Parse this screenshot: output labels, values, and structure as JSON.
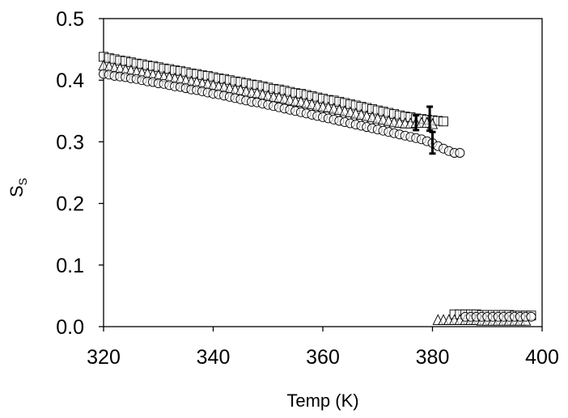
{
  "chart_data": {
    "type": "scatter",
    "title": "",
    "xlabel": "Temp (K)",
    "ylabel_main": "S",
    "ylabel_sub": "S",
    "xlim": [
      320,
      400
    ],
    "ylim": [
      0,
      0.5
    ],
    "xticks": [
      320,
      340,
      360,
      380,
      400
    ],
    "yticks": [
      0.0,
      0.1,
      0.2,
      0.3,
      0.4,
      0.5
    ],
    "xtick_labels": [
      "320",
      "340",
      "360",
      "380",
      "400"
    ],
    "ytick_labels": [
      "0.0",
      "0.1",
      "0.2",
      "0.3",
      "0.4",
      "0.5"
    ],
    "grid": false,
    "legend": "none",
    "series": [
      {
        "name": "squares",
        "marker": "square",
        "x": [
          320,
          321,
          322,
          323,
          324,
          325,
          326,
          327,
          328,
          329,
          330,
          331,
          332,
          333,
          334,
          335,
          336,
          337,
          338,
          339,
          340,
          341,
          342,
          343,
          344,
          345,
          346,
          347,
          348,
          349,
          350,
          351,
          352,
          353,
          354,
          355,
          356,
          357,
          358,
          359,
          360,
          361,
          362,
          363,
          364,
          365,
          366,
          367,
          368,
          369,
          370,
          371,
          372,
          373,
          374,
          375,
          376,
          377,
          378,
          379,
          380,
          381,
          382,
          384,
          385,
          386,
          387,
          388,
          389,
          390,
          391,
          392,
          393,
          394,
          395,
          396,
          397,
          398
        ],
        "y": [
          0.438,
          0.436,
          0.434,
          0.432,
          0.431,
          0.429,
          0.427,
          0.426,
          0.424,
          0.423,
          0.421,
          0.419,
          0.418,
          0.416,
          0.415,
          0.413,
          0.411,
          0.41,
          0.408,
          0.407,
          0.405,
          0.403,
          0.402,
          0.4,
          0.398,
          0.397,
          0.395,
          0.393,
          0.392,
          0.39,
          0.388,
          0.386,
          0.385,
          0.383,
          0.381,
          0.379,
          0.378,
          0.376,
          0.374,
          0.372,
          0.37,
          0.368,
          0.367,
          0.365,
          0.363,
          0.361,
          0.359,
          0.357,
          0.355,
          0.353,
          0.351,
          0.349,
          0.347,
          0.345,
          0.343,
          0.341,
          0.34,
          0.338,
          0.337,
          0.336,
          0.335,
          0.334,
          0.333,
          0.02,
          0.02,
          0.02,
          0.02,
          0.02,
          0.019,
          0.019,
          0.019,
          0.019,
          0.019,
          0.019,
          0.018,
          0.018,
          0.018,
          0.018
        ]
      },
      {
        "name": "triangles",
        "marker": "triangle",
        "x": [
          320,
          321,
          322,
          323,
          324,
          325,
          326,
          327,
          328,
          329,
          330,
          331,
          332,
          333,
          334,
          335,
          336,
          337,
          338,
          339,
          340,
          341,
          342,
          343,
          344,
          345,
          346,
          347,
          348,
          349,
          350,
          351,
          352,
          353,
          354,
          355,
          356,
          357,
          358,
          359,
          360,
          361,
          362,
          363,
          364,
          365,
          366,
          367,
          368,
          369,
          370,
          371,
          372,
          373,
          374,
          375,
          376,
          377,
          378,
          379,
          380,
          381,
          382,
          383,
          384,
          385,
          386,
          387,
          388,
          389,
          390,
          391,
          392,
          393,
          394,
          395,
          396,
          397
        ],
        "y": [
          0.423,
          0.421,
          0.419,
          0.418,
          0.416,
          0.415,
          0.413,
          0.411,
          0.41,
          0.408,
          0.407,
          0.405,
          0.404,
          0.402,
          0.401,
          0.399,
          0.397,
          0.396,
          0.394,
          0.393,
          0.391,
          0.389,
          0.388,
          0.386,
          0.384,
          0.383,
          0.381,
          0.379,
          0.378,
          0.376,
          0.374,
          0.372,
          0.371,
          0.369,
          0.367,
          0.365,
          0.364,
          0.362,
          0.36,
          0.358,
          0.356,
          0.355,
          0.353,
          0.351,
          0.349,
          0.347,
          0.345,
          0.343,
          0.341,
          0.339,
          0.337,
          0.335,
          0.333,
          0.331,
          0.33,
          0.329,
          0.329,
          0.33,
          0.33,
          0.33,
          0.328,
          0.01,
          0.01,
          0.01,
          0.01,
          0.01,
          0.01,
          0.01,
          0.01,
          0.009,
          0.009,
          0.009,
          0.009,
          0.009,
          0.009,
          0.009,
          0.009,
          0.009
        ]
      },
      {
        "name": "circles",
        "marker": "circle",
        "x": [
          320,
          321,
          322,
          323,
          324,
          325,
          326,
          327,
          328,
          329,
          330,
          331,
          332,
          333,
          334,
          335,
          336,
          337,
          338,
          339,
          340,
          341,
          342,
          343,
          344,
          345,
          346,
          347,
          348,
          349,
          350,
          351,
          352,
          353,
          354,
          355,
          356,
          357,
          358,
          359,
          360,
          361,
          362,
          363,
          364,
          365,
          366,
          367,
          368,
          369,
          370,
          371,
          372,
          373,
          374,
          375,
          376,
          377,
          378,
          379,
          380,
          381,
          382,
          383,
          384,
          385,
          386,
          387,
          388,
          389,
          390,
          391,
          392,
          393,
          394,
          395,
          396,
          397,
          398
        ],
        "y": [
          0.41,
          0.409,
          0.407,
          0.406,
          0.405,
          0.403,
          0.402,
          0.4,
          0.398,
          0.397,
          0.395,
          0.394,
          0.392,
          0.39,
          0.389,
          0.387,
          0.385,
          0.384,
          0.382,
          0.38,
          0.378,
          0.377,
          0.375,
          0.373,
          0.371,
          0.369,
          0.367,
          0.365,
          0.364,
          0.362,
          0.36,
          0.358,
          0.356,
          0.354,
          0.352,
          0.35,
          0.348,
          0.346,
          0.344,
          0.342,
          0.34,
          0.338,
          0.336,
          0.334,
          0.332,
          0.33,
          0.328,
          0.326,
          0.324,
          0.322,
          0.32,
          0.318,
          0.316,
          0.314,
          0.312,
          0.31,
          0.308,
          0.306,
          0.304,
          0.301,
          0.298,
          0.293,
          0.289,
          0.285,
          0.282,
          0.282,
          0.016,
          0.016,
          0.016,
          0.016,
          0.016,
          0.016,
          0.016,
          0.016,
          0.016,
          0.016,
          0.016,
          0.016,
          0.016
        ]
      }
    ],
    "error_bars": [
      {
        "x": 377,
        "center": 0.331,
        "low": 0.319,
        "high": 0.343
      },
      {
        "x": 379.5,
        "center": 0.337,
        "low": 0.318,
        "high": 0.357
      },
      {
        "x": 380,
        "center": 0.298,
        "low": 0.281,
        "high": 0.316
      }
    ]
  }
}
